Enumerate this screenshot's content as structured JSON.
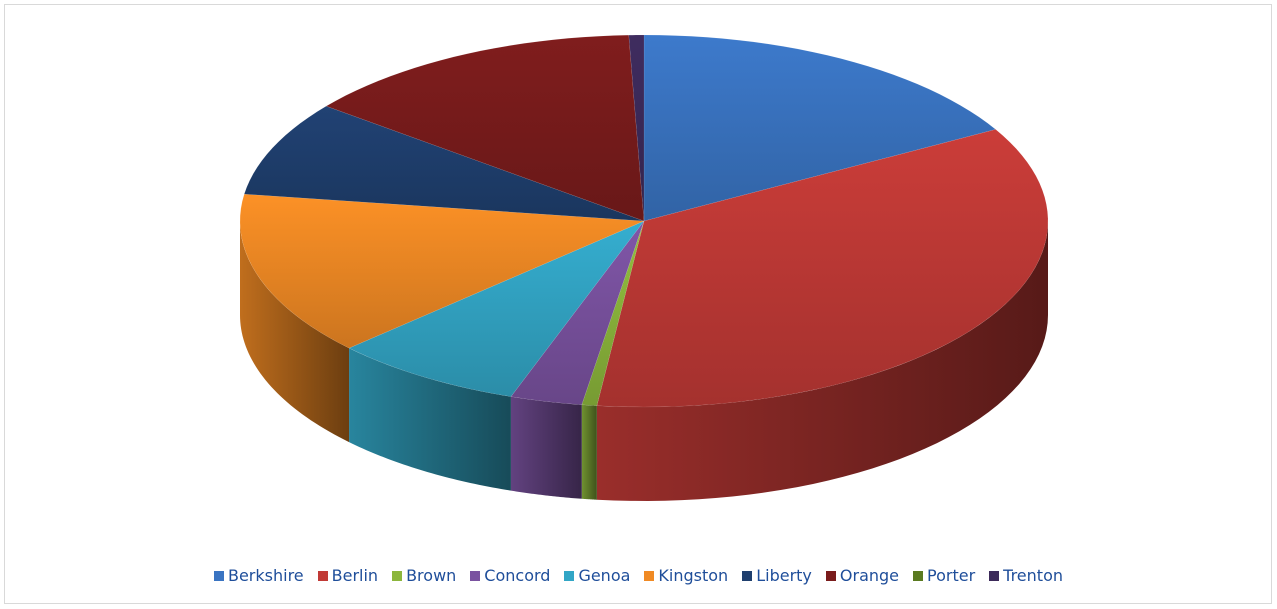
{
  "chart_data": {
    "type": "pie",
    "style": "3d",
    "title": "",
    "legend_position": "bottom",
    "categories": [
      "Berkshire",
      "Berlin",
      "Brown",
      "Concord",
      "Genoa",
      "Kingston",
      "Liberty",
      "Orange",
      "Porter",
      "Trenton"
    ],
    "values": [
      14.0,
      29.2,
      0.5,
      2.4,
      6.4,
      11.9,
      6.9,
      11.5,
      0.0,
      0.5
    ],
    "colors": [
      "#3a74c2",
      "#c13a36",
      "#8cb63c",
      "#7a52a0",
      "#32a6c6",
      "#f08a24",
      "#1f3f6e",
      "#7a1c1c",
      "#5a7a20",
      "#3c2a5a"
    ]
  }
}
